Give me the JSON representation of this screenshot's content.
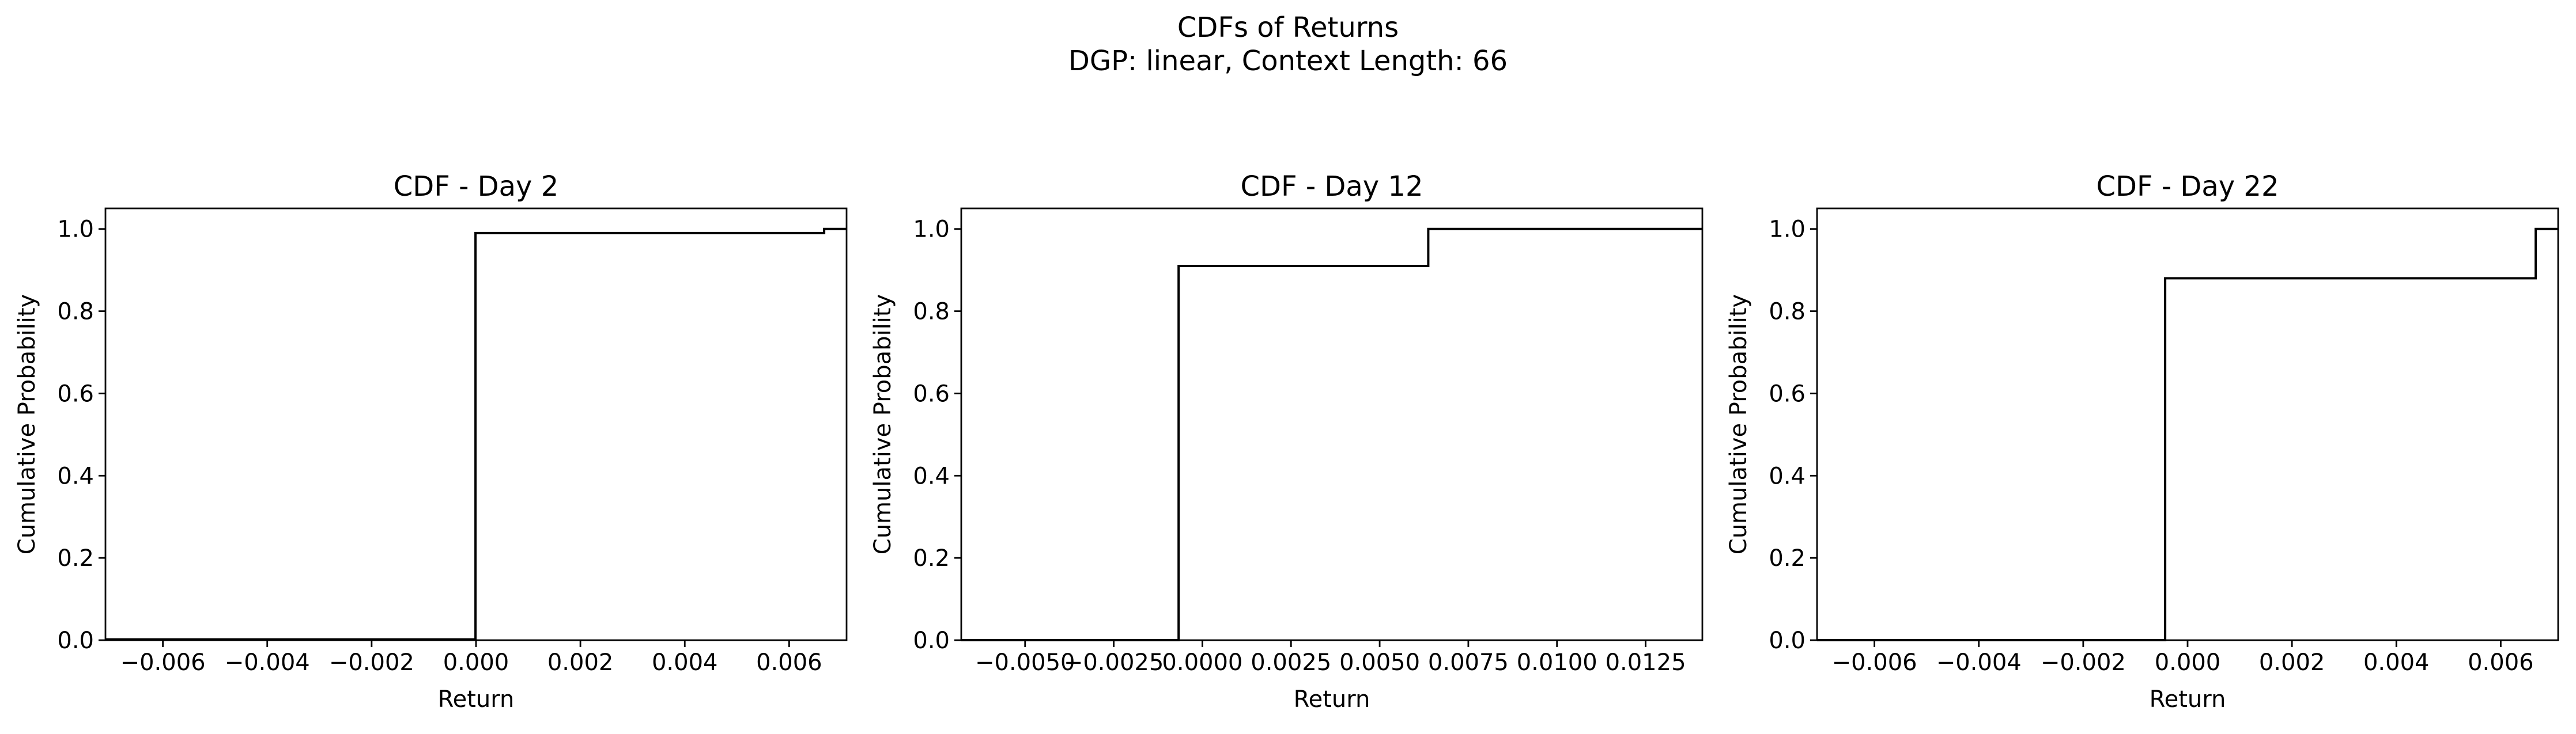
{
  "figure": {
    "title_line1": "CDFs of Returns",
    "title_line2": "DGP: linear, Context Length: 66"
  },
  "chart_data": [
    {
      "type": "line",
      "step": "post",
      "title": "CDF - Day 2",
      "xlabel": "Return",
      "ylabel": "Cumulative Probability",
      "xlim": [
        -0.0071,
        0.0071
      ],
      "ylim": [
        0.0,
        1.05
      ],
      "xticks": [
        -0.006,
        -0.004,
        -0.002,
        0.0,
        0.002,
        0.004,
        0.006
      ],
      "xtick_labels": [
        "−0.006",
        "−0.004",
        "−0.002",
        "0.000",
        "0.002",
        "0.004",
        "0.006"
      ],
      "yticks": [
        0.0,
        0.2,
        0.4,
        0.6,
        0.8,
        1.0
      ],
      "ytick_labels": [
        "0.0",
        "0.2",
        "0.4",
        "0.6",
        "0.8",
        "1.0"
      ],
      "series": [
        {
          "x": [
            -0.0071,
            -1e-05,
            -1e-05,
            0.00667,
            0.00667,
            0.0071
          ],
          "y": [
            0.002,
            0.002,
            0.99,
            0.99,
            1.0,
            1.0
          ]
        }
      ]
    },
    {
      "type": "line",
      "step": "post",
      "title": "CDF - Day 12",
      "xlabel": "Return",
      "ylabel": "Cumulative Probability",
      "xlim": [
        -0.0068,
        0.0141
      ],
      "ylim": [
        0.0,
        1.05
      ],
      "xticks": [
        -0.005,
        -0.0025,
        0.0,
        0.0025,
        0.005,
        0.0075,
        0.01,
        0.0125
      ],
      "xtick_labels": [
        "−0.0050",
        "−0.0025",
        "0.0000",
        "0.0025",
        "0.0050",
        "0.0075",
        "0.0100",
        "0.0125"
      ],
      "yticks": [
        0.0,
        0.2,
        0.4,
        0.6,
        0.8,
        1.0
      ],
      "ytick_labels": [
        "0.0",
        "0.2",
        "0.4",
        "0.6",
        "0.8",
        "1.0"
      ],
      "series": [
        {
          "x": [
            -0.0068,
            -0.00067,
            -0.00067,
            0.00637,
            0.00637,
            0.0141
          ],
          "y": [
            0.0,
            0.0,
            0.91,
            0.91,
            1.0,
            1.0
          ]
        }
      ]
    },
    {
      "type": "line",
      "step": "post",
      "title": "CDF - Day 22",
      "xlabel": "Return",
      "ylabel": "Cumulative Probability",
      "xlim": [
        -0.0071,
        0.0071
      ],
      "ylim": [
        0.0,
        1.05
      ],
      "xticks": [
        -0.006,
        -0.004,
        -0.002,
        0.0,
        0.002,
        0.004,
        0.006
      ],
      "xtick_labels": [
        "−0.006",
        "−0.004",
        "−0.002",
        "0.000",
        "0.002",
        "0.004",
        "0.006"
      ],
      "yticks": [
        0.0,
        0.2,
        0.4,
        0.6,
        0.8,
        1.0
      ],
      "ytick_labels": [
        "0.0",
        "0.2",
        "0.4",
        "0.6",
        "0.8",
        "1.0"
      ],
      "series": [
        {
          "x": [
            -0.0071,
            -0.00043,
            -0.00043,
            0.00667,
            0.00667,
            0.0071
          ],
          "y": [
            0.0,
            0.0,
            0.88,
            0.88,
            1.0,
            1.0
          ]
        }
      ]
    }
  ]
}
